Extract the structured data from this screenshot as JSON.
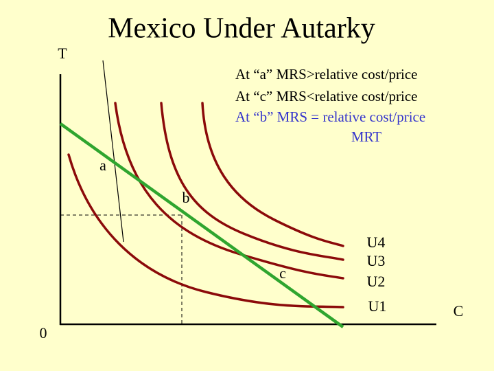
{
  "title": "Mexico Under Autarky",
  "axes": {
    "y_label": "T",
    "x_label": "C",
    "origin": "0"
  },
  "annotations": [
    "At “a”  MRS>relative cost/price",
    "At “c”  MRS<relative cost/price",
    "At “b”  MRS = relative cost/price",
    "MRT"
  ],
  "points": [
    "a",
    "b",
    "c"
  ],
  "curves": [
    "U4",
    "U3",
    "U2",
    "U1"
  ]
}
